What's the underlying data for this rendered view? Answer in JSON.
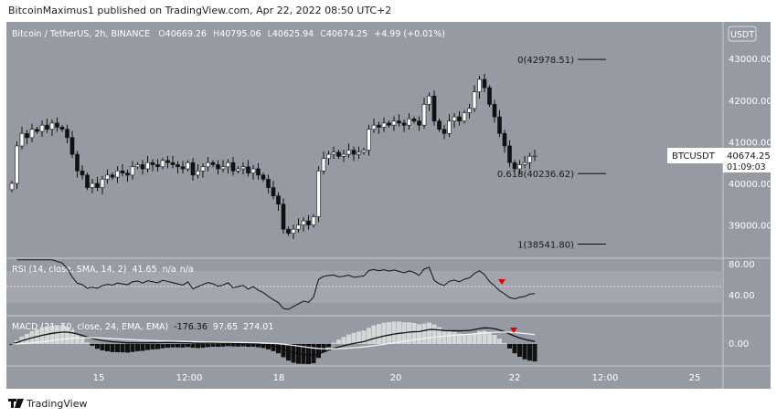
{
  "publisher_line": "BitcoinMaximus1 published on TradingView.com, Apr 22, 2022 08:50 UTC+2",
  "legend": {
    "symbol": "Bitcoin / TetherUS, 2h, BINANCE",
    "o_label": "O",
    "o": "40669.26",
    "h_label": "H",
    "h": "40795.06",
    "l_label": "L",
    "l": "40625.94",
    "c_label": "C",
    "c": "40674.25",
    "change": "+4.99 (+0.01%)"
  },
  "currency_button": "USDT",
  "price_label": {
    "symbol": "BTCUSDT",
    "price": "40674.25",
    "countdown": "01:09:03"
  },
  "rsi_legend": {
    "title": "RSI (14, close, SMA, 14, 2)",
    "value": "41.65",
    "v2": "n/a",
    "v3": "n/a"
  },
  "macd_legend": {
    "title": "MACD (21, 50, close, 24, EMA, EMA)",
    "v1": "-176.36",
    "v2": "97.65",
    "v3": "274.01"
  },
  "footer_logo": "TradingView",
  "colors": {
    "background": "#969aa2",
    "panel_band": "#a3a6ae",
    "candle_up": "#ffffff",
    "candle_down": "#111111",
    "signal_marker": "#e00000"
  },
  "chart_data": {
    "type": "candlestick",
    "price_axis": {
      "ticks": [
        "43000.00",
        "42000.00",
        "41000.00",
        "40000.00",
        "39000.00"
      ],
      "range": [
        38300,
        43600
      ]
    },
    "time_axis": {
      "ticks": [
        "15",
        "12:00",
        "18",
        "20",
        "22",
        "12:00",
        "25"
      ]
    },
    "closes": [
      40000,
      40900,
      41200,
      41100,
      41300,
      41250,
      41400,
      41300,
      41450,
      41350,
      41300,
      41100,
      40700,
      40300,
      40200,
      39900,
      40000,
      39900,
      40100,
      40200,
      40150,
      40300,
      40250,
      40200,
      40400,
      40450,
      40350,
      40500,
      40450,
      40400,
      40550,
      40500,
      40450,
      40400,
      40350,
      40500,
      40200,
      40300,
      40400,
      40500,
      40450,
      40350,
      40400,
      40500,
      40300,
      40350,
      40400,
      40250,
      40350,
      40200,
      40100,
      39900,
      39700,
      39500,
      38900,
      38800,
      38900,
      39000,
      39100,
      39000,
      39200,
      40300,
      40600,
      40700,
      40750,
      40650,
      40700,
      40800,
      40700,
      40750,
      40800,
      41300,
      41400,
      41350,
      41450,
      41400,
      41500,
      41450,
      41400,
      41550,
      41500,
      41400,
      41900,
      42100,
      41500,
      41300,
      41200,
      41500,
      41600,
      41500,
      41700,
      41800,
      42200,
      42500,
      42300,
      41900,
      41600,
      41200,
      40900,
      40500,
      40350,
      40450,
      40500,
      40650,
      40674.25
    ],
    "fib_levels": [
      {
        "label": "0(42978.51)",
        "price": 42978.51
      },
      {
        "label": "0.618(40236.62)",
        "price": 40236.62
      },
      {
        "label": "1(38541.80)",
        "price": 38541.8
      }
    ],
    "rsi": {
      "ticks": [
        "80.00",
        "40.00"
      ],
      "band": [
        30,
        70
      ],
      "midline": 50
    },
    "macd": {
      "ticks": [
        "0.00"
      ]
    }
  }
}
